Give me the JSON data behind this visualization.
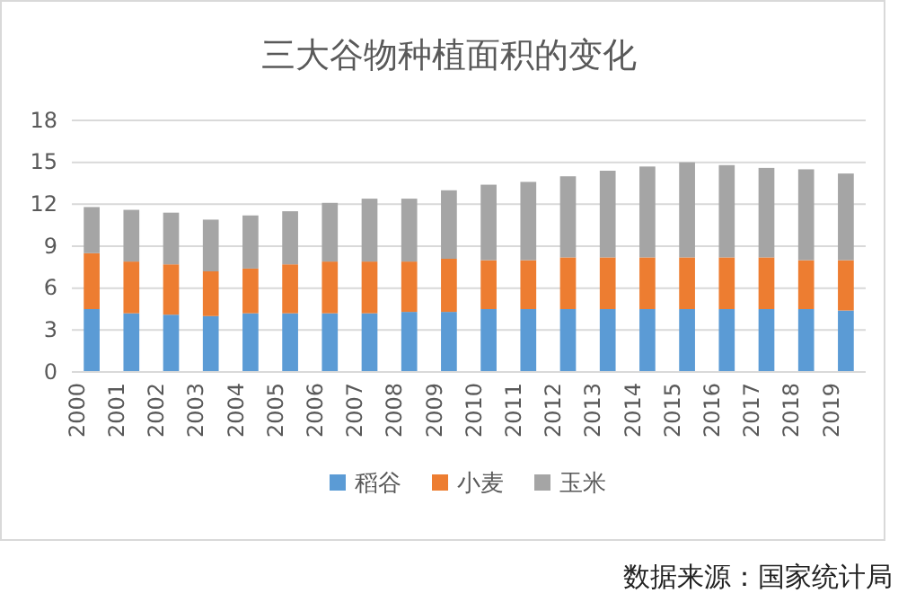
{
  "chart_data": {
    "type": "bar",
    "title": "三大谷物种植面积的变化",
    "stacked": true,
    "categories": [
      "2000",
      "2001",
      "2002",
      "2003",
      "2004",
      "2005",
      "2006",
      "2007",
      "2008",
      "2009",
      "2010",
      "2011",
      "2012",
      "2013",
      "2014",
      "2015",
      "2016",
      "2017",
      "2018",
      "2019"
    ],
    "series": [
      {
        "name": "稻谷",
        "color": "#5b9bd5",
        "values": [
          4.5,
          4.2,
          4.1,
          4.0,
          4.2,
          4.2,
          4.2,
          4.2,
          4.3,
          4.3,
          4.5,
          4.5,
          4.5,
          4.5,
          4.5,
          4.5,
          4.5,
          4.5,
          4.5,
          4.4
        ]
      },
      {
        "name": "小麦",
        "color": "#ed7d31",
        "values": [
          4.0,
          3.7,
          3.6,
          3.2,
          3.2,
          3.5,
          3.7,
          3.7,
          3.6,
          3.8,
          3.5,
          3.5,
          3.7,
          3.7,
          3.7,
          3.7,
          3.7,
          3.7,
          3.5,
          3.6
        ]
      },
      {
        "name": "玉米",
        "color": "#a5a5a5",
        "values": [
          3.3,
          3.7,
          3.7,
          3.7,
          3.8,
          3.8,
          4.2,
          4.5,
          4.5,
          4.9,
          5.4,
          5.6,
          5.8,
          6.2,
          6.5,
          6.8,
          6.6,
          6.4,
          6.5,
          6.2
        ]
      }
    ],
    "ylim": [
      0,
      18
    ],
    "yticks": [
      0,
      3,
      6,
      9,
      12,
      15,
      18
    ],
    "grid": "y",
    "legend": "bottom",
    "annotations": [
      "数据来源：国家统计局"
    ]
  }
}
